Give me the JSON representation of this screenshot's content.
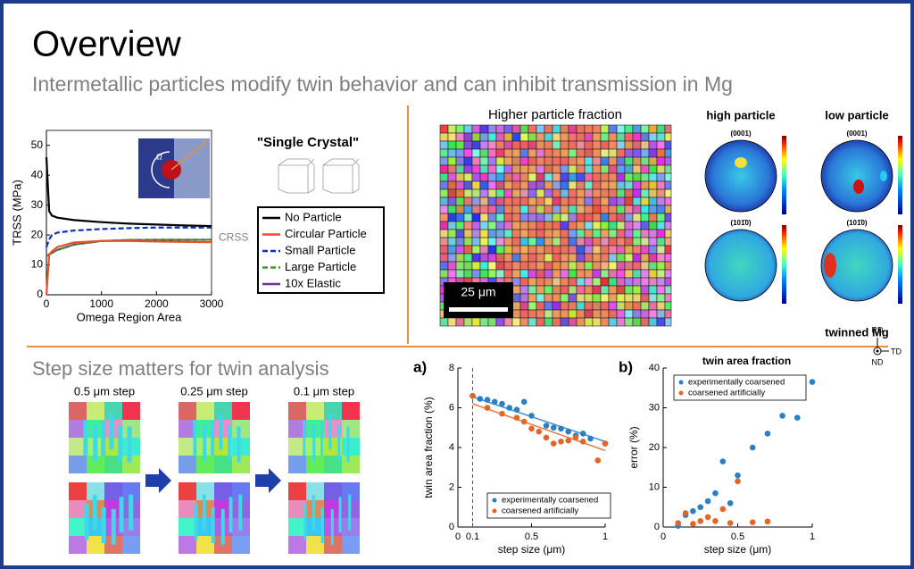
{
  "header": {
    "title": "Overview",
    "subtitle": "Intermetallic particles modify twin behavior and can inhibit transmission in Mg"
  },
  "panel_labels": {
    "single_crystal": "\"Single Crystal\"",
    "ebsd_title": "Higher particle fraction",
    "scale_bar": "25 μm",
    "high": "high particle",
    "low": "low particle",
    "pole_figures": [
      "(0001)",
      "(0001)",
      "(101̄0)",
      "(101̄0)"
    ],
    "twinned": "twinned Mg",
    "rd": "RD",
    "td": "TD",
    "nd": "ND",
    "step_title": "Step size matters for twin analysis",
    "steps": [
      "0.5 μm step",
      "0.25 μm step",
      "0.1 μm step"
    ]
  },
  "chart_data": [
    {
      "type": "line",
      "x_label": "Omega Region Area",
      "y_label": "TRSS (MPa)",
      "annotation": "CRSS",
      "legend": "outside right",
      "x": [
        0,
        50,
        100,
        200,
        500,
        1000,
        1500,
        2000,
        2500,
        3000
      ],
      "series": [
        {
          "name": "No Particle",
          "color": "#000000",
          "dash": false,
          "values": [
            46,
            28,
            26.5,
            25.8,
            25,
            24.3,
            23.8,
            23.5,
            23.2,
            23
          ]
        },
        {
          "name": "Circular Particle",
          "color": "#e8512a",
          "dash": false,
          "values": [
            0,
            13.5,
            14.5,
            16,
            17.5,
            18,
            18,
            17.8,
            17.7,
            17.6
          ]
        },
        {
          "name": "Small Particle",
          "color": "#1030b0",
          "dash": true,
          "values": [
            16,
            18.5,
            20,
            20.8,
            21.5,
            22,
            22.3,
            22.5,
            22.5,
            22.5
          ]
        },
        {
          "name": "Large Particle",
          "color": "#3a9a2a",
          "dash": true,
          "values": [
            13,
            13.5,
            14,
            15,
            16.8,
            18,
            18.3,
            18.4,
            18.4,
            18.4
          ]
        },
        {
          "name": "10x Elastic",
          "color": "#7030a0",
          "dash": false,
          "values": [
            13,
            13.5,
            14,
            15,
            16.8,
            18,
            18.3,
            18.4,
            18.4,
            18.4
          ]
        }
      ],
      "xlim": [
        0,
        3000
      ],
      "xticks": [
        0,
        1000,
        2000,
        3000
      ],
      "ylim": [
        0,
        55
      ],
      "yticks": [
        0,
        10,
        20,
        30,
        40,
        50
      ]
    },
    {
      "type": "scatter",
      "label": "a)",
      "x_label": "step size (μm)",
      "y_label": "twin area fraction (%)",
      "legend": "lower right",
      "reference_x": 0.1,
      "series": [
        {
          "name": "experimentally coarsened",
          "color": "#2a7fc8",
          "x": [
            0.1,
            0.15,
            0.2,
            0.25,
            0.3,
            0.35,
            0.4,
            0.45,
            0.5,
            0.6,
            0.65,
            0.7,
            0.75,
            0.8,
            0.85,
            0.9,
            1
          ],
          "values": [
            6.6,
            6.45,
            6.4,
            6.3,
            6.2,
            6.0,
            5.9,
            6.3,
            5.6,
            5.1,
            5.0,
            4.95,
            4.8,
            4.6,
            4.7,
            4.45,
            4.2
          ],
          "fit_x": [
            0.1,
            1
          ],
          "fit_values": [
            6.55,
            4.3
          ]
        },
        {
          "name": "coarsened artificially",
          "color": "#e0662a",
          "x": [
            0.1,
            0.2,
            0.3,
            0.4,
            0.45,
            0.5,
            0.55,
            0.6,
            0.65,
            0.7,
            0.75,
            0.8,
            0.85,
            0.95,
            1
          ],
          "values": [
            6.6,
            6.0,
            5.7,
            5.5,
            5.3,
            4.95,
            4.8,
            4.5,
            4.2,
            4.3,
            4.35,
            4.5,
            4.3,
            3.35,
            4.2
          ],
          "fit_x": [
            0.1,
            1
          ],
          "fit_values": [
            6.2,
            3.85
          ]
        }
      ],
      "xlim": [
        0,
        1
      ],
      "xticks": [
        0,
        0.1,
        0.5,
        1
      ],
      "ylim": [
        0,
        8
      ],
      "yticks": [
        0,
        2,
        4,
        6,
        8
      ]
    },
    {
      "type": "scatter",
      "label": "b)",
      "title": "twin area fraction",
      "x_label": "step size (μm)",
      "y_label": "error (%)",
      "legend": "upper left",
      "series": [
        {
          "name": "experimentally coarsened",
          "color": "#2a7fc8",
          "x": [
            0.1,
            0.15,
            0.2,
            0.25,
            0.3,
            0.35,
            0.4,
            0.45,
            0.5,
            0.6,
            0.7,
            0.8,
            0.9,
            1
          ],
          "values": [
            0.3,
            3,
            4,
            5,
            6.5,
            8.5,
            16.5,
            6,
            13,
            20,
            23.5,
            28,
            27.5,
            36.5
          ]
        },
        {
          "name": "coarsened artificially",
          "color": "#e0662a",
          "x": [
            0.1,
            0.15,
            0.2,
            0.25,
            0.3,
            0.35,
            0.4,
            0.45,
            0.5,
            0.6,
            0.7
          ],
          "values": [
            1,
            3.5,
            0.8,
            1.5,
            2.5,
            1.5,
            4.5,
            1,
            11.5,
            1.2,
            1.4
          ]
        }
      ],
      "xlim": [
        0,
        1
      ],
      "xticks": [
        0,
        0.5,
        1
      ],
      "ylim": [
        0,
        40
      ],
      "yticks": [
        0,
        10,
        20,
        30,
        40
      ]
    }
  ]
}
